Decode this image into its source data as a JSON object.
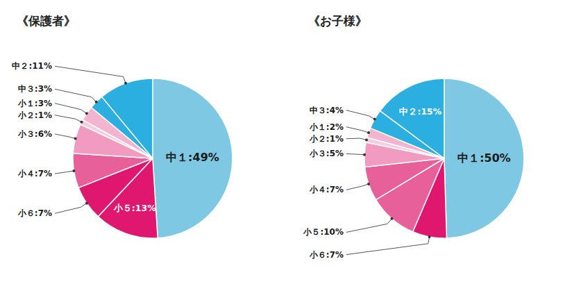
{
  "chart_data": [
    {
      "type": "pie",
      "title": "《保護者》",
      "categories": [
        "中１",
        "小５",
        "小６",
        "小４",
        "小３",
        "小２",
        "小１",
        "中３",
        "中２"
      ],
      "values": [
        49,
        13,
        7,
        7,
        6,
        1,
        3,
        3,
        11
      ],
      "value_labels": [
        "中１:49%",
        "小５:13%",
        "小６:7%",
        "小４:7%",
        "小３:6%",
        "小２:1%",
        "小１:3%",
        "中３:3%",
        "中２:11%"
      ],
      "colors": [
        "#7EC8E3",
        "#E0176E",
        "#E0176E",
        "#E8609A",
        "#F09BBF",
        "#F7CCE0",
        "#F2B4CF",
        "#2BAEE0",
        "#2BAEE0"
      ],
      "data_labels": true
    },
    {
      "type": "pie",
      "title": "《お子様》",
      "categories": [
        "中１",
        "小６",
        "小５",
        "小４",
        "小３",
        "小２",
        "小１",
        "中３",
        "中２"
      ],
      "values": [
        50,
        7,
        10,
        7,
        5,
        1,
        2,
        4,
        15
      ],
      "value_labels": [
        "中１:50%",
        "小６:7%",
        "小５:10%",
        "小４:7%",
        "小３:5%",
        "小２:1%",
        "小１:2%",
        "中３:4%",
        "中２:15%"
      ],
      "colors": [
        "#7EC8E3",
        "#E0176E",
        "#E8609A",
        "#E8609A",
        "#F09BBF",
        "#F7CCE0",
        "#F2B4CF",
        "#2BAEE0",
        "#2BAEE0"
      ],
      "data_labels": true
    }
  ]
}
